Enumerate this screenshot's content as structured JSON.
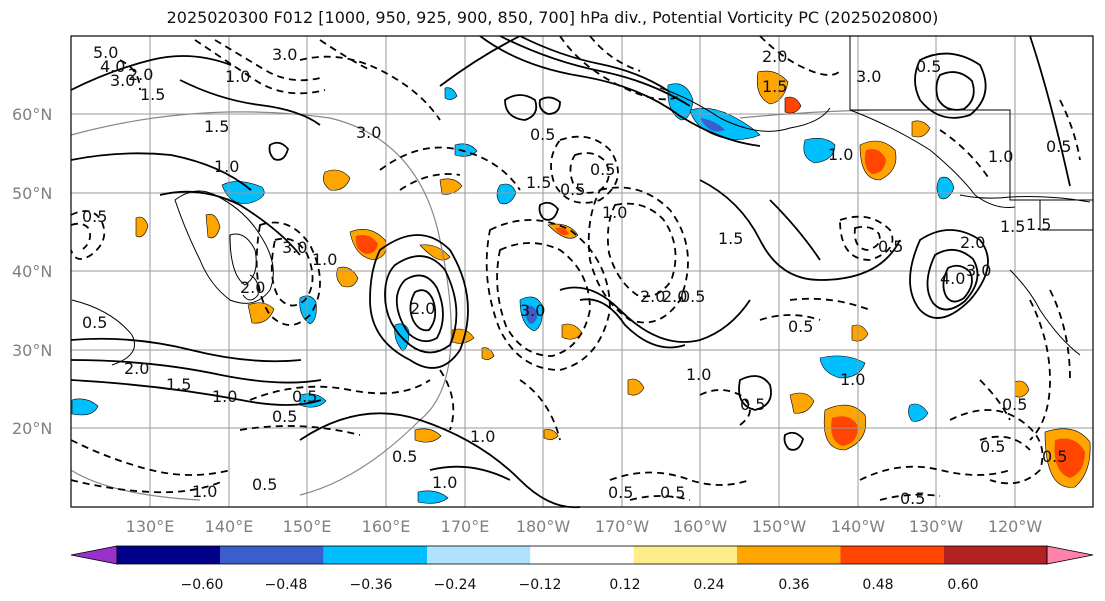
{
  "title": "2025020300 F012 [1000, 950, 925, 900, 850, 700] hPa div., Potential Vorticity PC (2025020800)",
  "lat_labels": [
    "60°N",
    "50°N",
    "40°N",
    "30°N",
    "20°N"
  ],
  "lon_labels": [
    "130°E",
    "140°E",
    "150°E",
    "160°E",
    "170°E",
    "180°W",
    "170°W",
    "160°W",
    "150°W",
    "140°W",
    "130°W",
    "120°W"
  ],
  "colorbar": {
    "colors": [
      "#9932cc",
      "#00008b",
      "#3a5fcd",
      "#00bfff",
      "#b0e2ff",
      "#ffffff",
      "#ffec8b",
      "#ffa500",
      "#ff4500",
      "#b22222",
      "#ff82ab"
    ],
    "tick_labels": [
      "−0.60",
      "−0.48",
      "−0.36",
      "−0.24",
      "−0.12",
      "0.12",
      "0.24",
      "0.36",
      "0.48",
      "0.60"
    ]
  },
  "contour_labels": [
    "5.0",
    "4.0",
    "3.0",
    "3.0",
    "2.0",
    "3.0",
    "1.0",
    "1.5",
    "1.0",
    "1.5",
    "2.0",
    "3.0",
    "2.0",
    "1.0",
    "0.5",
    "0.5",
    "0.5",
    "0.5",
    "1.0",
    "1.5",
    "1.0",
    "2.0",
    "1.5",
    "2.0",
    "1.0",
    "0.5",
    "0.5",
    "0.5",
    "0.5",
    "1.5",
    "1.0",
    "3.0",
    "2.0",
    "2.0",
    "3.0",
    "0.5",
    "1.5",
    "1.0",
    "0.5",
    "0.5",
    "4.0",
    "3.0",
    "2.0",
    "1.5",
    "0.5",
    "0.5",
    "0.5",
    "0.5",
    "0.5",
    "1.0",
    "0.5",
    "0.5",
    "1.0",
    "0.5",
    "0.5",
    "1.0",
    "1.0",
    "0.5",
    "1.5"
  ]
}
